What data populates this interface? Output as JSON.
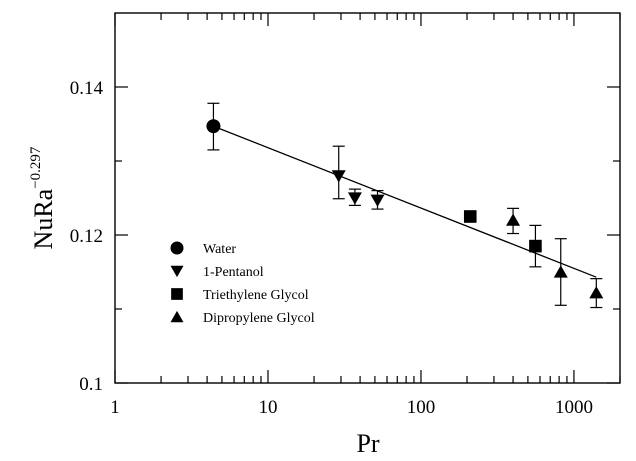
{
  "chart_data": {
    "type": "scatter",
    "x_scale": "log",
    "xlim": [
      1,
      2000
    ],
    "ylim": [
      0.1,
      0.15
    ],
    "xlabel": "Pr",
    "ylabel_base": "NuRa",
    "ylabel_exponent": "−0.297",
    "x_tick_labels": [
      {
        "value": 1,
        "label": "1"
      },
      {
        "value": 10,
        "label": "10"
      },
      {
        "value": 100,
        "label": "100"
      },
      {
        "value": 1000,
        "label": "1000"
      }
    ],
    "y_tick_labels": [
      {
        "value": 0.1,
        "label": "0.1"
      },
      {
        "value": 0.12,
        "label": "0.12"
      },
      {
        "value": 0.14,
        "label": "0.14"
      }
    ],
    "y_minor_ticks": [
      0.11,
      0.13
    ],
    "legend_placement": "lower-left",
    "series": [
      {
        "name": "Water",
        "marker": "circle",
        "points": [
          {
            "x": 4.4,
            "y": 0.1347,
            "err_low": 0.1315,
            "err_high": 0.1378
          }
        ]
      },
      {
        "name": "1-Pentanol",
        "marker": "triangle-down",
        "points": [
          {
            "x": 29,
            "y": 0.128,
            "err_low": 0.1249,
            "err_high": 0.132
          },
          {
            "x": 37,
            "y": 0.125,
            "err_low": 0.124,
            "err_high": 0.1262
          },
          {
            "x": 52,
            "y": 0.1247,
            "err_low": 0.1235,
            "err_high": 0.126
          }
        ]
      },
      {
        "name": "Triethylene Glycol",
        "marker": "square",
        "points": [
          {
            "x": 210,
            "y": 0.1225,
            "err_low": null,
            "err_high": null
          },
          {
            "x": 560,
            "y": 0.1185,
            "err_low": 0.1157,
            "err_high": 0.1213
          }
        ]
      },
      {
        "name": "Dipropylene Glycol",
        "marker": "triangle-up",
        "points": [
          {
            "x": 400,
            "y": 0.122,
            "err_low": 0.1202,
            "err_high": 0.1236
          },
          {
            "x": 820,
            "y": 0.115,
            "err_low": 0.1105,
            "err_high": 0.1195
          },
          {
            "x": 1400,
            "y": 0.1122,
            "err_low": 0.1102,
            "err_high": 0.1141
          }
        ]
      }
    ],
    "fit_line": {
      "x": [
        4.4,
        1400
      ],
      "y": [
        0.1347,
        0.1143
      ]
    }
  }
}
